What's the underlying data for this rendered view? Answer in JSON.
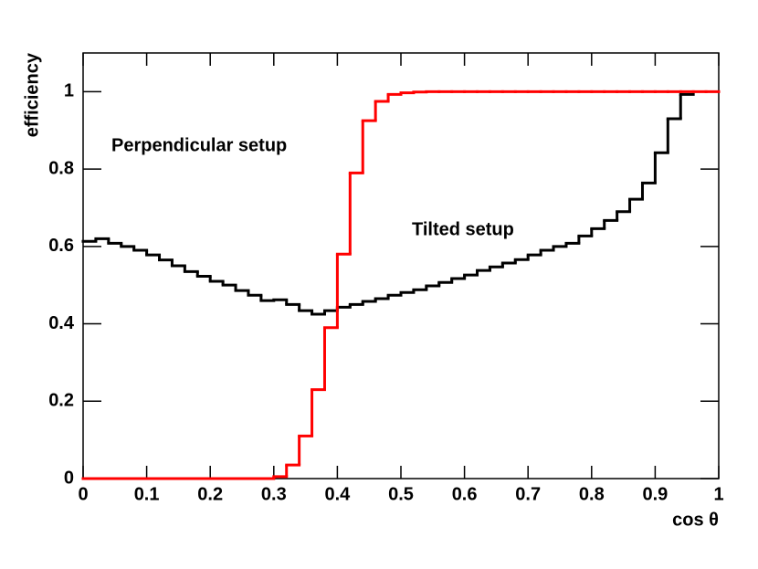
{
  "chart_data": {
    "type": "histogram",
    "x_label": "cos θ",
    "y_label": "efficiency",
    "xlim": [
      0,
      1
    ],
    "ylim": [
      0,
      1.1
    ],
    "xticks": [
      0,
      0.1,
      0.2,
      0.3,
      0.4,
      0.5,
      0.6,
      0.7,
      0.8,
      0.9,
      1
    ],
    "yticks": [
      0,
      0.2,
      0.4,
      0.6,
      0.8,
      1
    ],
    "bins": [
      0,
      0.02,
      0.04,
      0.06,
      0.08,
      0.1,
      0.12,
      0.14,
      0.16,
      0.18,
      0.2,
      0.22,
      0.24,
      0.26,
      0.28,
      0.3,
      0.32,
      0.34,
      0.36,
      0.38,
      0.4,
      0.42,
      0.44,
      0.46,
      0.48,
      0.5,
      0.52,
      0.54,
      0.56,
      0.58,
      0.6,
      0.62,
      0.64,
      0.66,
      0.68,
      0.7,
      0.72,
      0.74,
      0.76,
      0.78,
      0.8,
      0.82,
      0.84,
      0.86,
      0.88,
      0.9,
      0.92,
      0.94,
      0.96,
      0.98,
      1
    ],
    "series": [
      {
        "name": "Tilted setup",
        "color": "#000000",
        "values": [
          0.613,
          0.62,
          0.608,
          0.6,
          0.59,
          0.578,
          0.565,
          0.55,
          0.535,
          0.523,
          0.51,
          0.5,
          0.486,
          0.474,
          0.46,
          0.462,
          0.45,
          0.434,
          0.425,
          0.434,
          0.443,
          0.45,
          0.458,
          0.465,
          0.474,
          0.481,
          0.488,
          0.498,
          0.507,
          0.517,
          0.526,
          0.538,
          0.547,
          0.557,
          0.566,
          0.578,
          0.59,
          0.6,
          0.608,
          0.627,
          0.646,
          0.667,
          0.69,
          0.722,
          0.764,
          0.842,
          0.93,
          0.993,
          null,
          null
        ]
      },
      {
        "name": "Perpendicular setup",
        "color": "#ff0000",
        "values": [
          0,
          0,
          0,
          0,
          0,
          0,
          0,
          0,
          0,
          0,
          0,
          0,
          0,
          0,
          0,
          0.005,
          0.035,
          0.11,
          0.23,
          0.39,
          0.58,
          0.79,
          0.925,
          0.975,
          0.993,
          0.997,
          0.999,
          1,
          1,
          1,
          1,
          1,
          1,
          1,
          1,
          1,
          1,
          1,
          1,
          1,
          1,
          1,
          1,
          1,
          1,
          1,
          1,
          1,
          1,
          1
        ]
      }
    ]
  }
}
